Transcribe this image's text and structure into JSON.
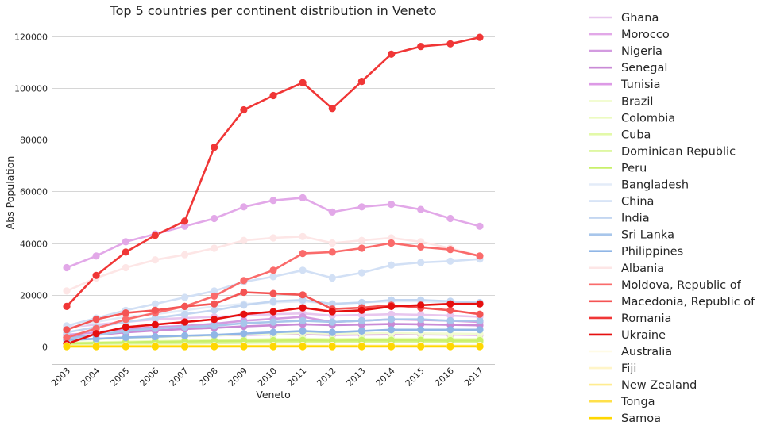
{
  "chart_data": {
    "type": "line",
    "title": "Top 5 countries per continent distribution in Veneto",
    "xlabel": "Veneto",
    "ylabel": "Abs Population",
    "categories": [
      "2003",
      "2004",
      "2005",
      "2006",
      "2007",
      "2008",
      "2009",
      "2010",
      "2011",
      "2012",
      "2013",
      "2014",
      "2015",
      "2016",
      "2017"
    ],
    "ylim": [
      -6500,
      125000
    ],
    "yticks": [
      0,
      20000,
      40000,
      60000,
      80000,
      100000,
      120000
    ],
    "grid": "horizontal",
    "legend": "right",
    "series": [
      {
        "name": "Ghana",
        "color": "#e8c6ee",
        "values": [
          7500,
          8500,
          9500,
          10500,
          11000,
          11500,
          12000,
          12500,
          12800,
          12000,
          12200,
          12500,
          12300,
          12000,
          11500
        ]
      },
      {
        "name": "Morocco",
        "color": "#e2a8e8",
        "values": [
          30500,
          35000,
          40500,
          43500,
          46500,
          49500,
          54000,
          56500,
          57500,
          52000,
          54000,
          55000,
          53000,
          49500,
          46500
        ]
      },
      {
        "name": "Nigeria",
        "color": "#d39be0",
        "values": [
          4500,
          5500,
          6800,
          7500,
          8000,
          8800,
          10000,
          10700,
          11500,
          9500,
          10000,
          10500,
          10300,
          10000,
          9500
        ]
      },
      {
        "name": "Senegal",
        "color": "#c98ad6",
        "values": [
          3500,
          4500,
          5500,
          6200,
          6800,
          7200,
          7800,
          8200,
          8600,
          8300,
          8500,
          8700,
          8600,
          8400,
          8200
        ]
      },
      {
        "name": "Tunisia",
        "color": "#dd9ae6",
        "values": [
          2500,
          3000,
          3500,
          3800,
          4000,
          4300,
          4500,
          4700,
          4800,
          4500,
          4600,
          4700,
          4700,
          4600,
          4500
        ]
      },
      {
        "name": "Brazil",
        "color": "#f2fcd2",
        "values": [
          2500,
          2800,
          3200,
          3600,
          4000,
          4300,
          4600,
          4900,
          5200,
          5000,
          5100,
          5200,
          5100,
          5000,
          4900
        ]
      },
      {
        "name": "Colombia",
        "color": "#ecfbc0",
        "values": [
          1500,
          1700,
          1900,
          2100,
          2300,
          2500,
          2700,
          2900,
          3000,
          2900,
          3000,
          3000,
          3000,
          2900,
          2900
        ]
      },
      {
        "name": "Cuba",
        "color": "#e3f9a9",
        "values": [
          800,
          900,
          1000,
          1100,
          1200,
          1300,
          1400,
          1500,
          1600,
          1600,
          1700,
          1700,
          1700,
          1700,
          1700
        ]
      },
      {
        "name": "Dominican Republic",
        "color": "#d9f694",
        "values": [
          1000,
          1100,
          1300,
          1400,
          1500,
          1600,
          1700,
          1800,
          1900,
          1800,
          1900,
          1900,
          1900,
          1800,
          1800
        ]
      },
      {
        "name": "Peru",
        "color": "#c8f06a",
        "values": [
          1200,
          1400,
          1600,
          1800,
          2000,
          2100,
          2200,
          2300,
          2400,
          2300,
          2400,
          2400,
          2400,
          2300,
          2300
        ]
      },
      {
        "name": "Bangladesh",
        "color": "#e3ecf8",
        "values": [
          7000,
          9500,
          11500,
          12500,
          14000,
          15500,
          16500,
          17000,
          17500,
          16500,
          17000,
          17500,
          17500,
          17000,
          16500
        ]
      },
      {
        "name": "China",
        "color": "#d2e0f5",
        "values": [
          8000,
          11000,
          14000,
          16500,
          19000,
          21500,
          25000,
          27000,
          29500,
          26500,
          28500,
          31500,
          32500,
          33000,
          33800
        ]
      },
      {
        "name": "India",
        "color": "#c3d6f1",
        "values": [
          5500,
          7500,
          9500,
          11000,
          12500,
          14000,
          16000,
          17500,
          18000,
          16500,
          17000,
          18000,
          18000,
          17500,
          17000
        ]
      },
      {
        "name": "Sri Lanka",
        "color": "#a8c6eb",
        "values": [
          3000,
          4500,
          6000,
          7000,
          7500,
          8000,
          9000,
          9500,
          10000,
          9500,
          10000,
          10500,
          10500,
          10000,
          10000
        ]
      },
      {
        "name": "Philippines",
        "color": "#90b6e6",
        "values": [
          2500,
          3000,
          3500,
          3800,
          4200,
          4500,
          5000,
          5500,
          6000,
          5500,
          6000,
          6500,
          6500,
          6500,
          6500
        ]
      },
      {
        "name": "Albania",
        "color": "#fde6e6",
        "values": [
          21500,
          26500,
          30500,
          33500,
          35500,
          38000,
          41000,
          42000,
          42500,
          40000,
          41000,
          42000,
          40500,
          38000,
          35000
        ]
      },
      {
        "name": "Moldova, Republic of",
        "color": "#fa6b6b",
        "values": [
          3500,
          7000,
          10500,
          13000,
          15500,
          19500,
          25500,
          29500,
          36000,
          36500,
          38000,
          40000,
          38500,
          37500,
          35000
        ]
      },
      {
        "name": "Macedonia, Republic of",
        "color": "#f45454",
        "values": [
          6500,
          10500,
          13000,
          14000,
          15500,
          16500,
          21000,
          20500,
          20000,
          14500,
          15000,
          16000,
          15000,
          14000,
          12500
        ]
      },
      {
        "name": "Romania",
        "color": "#f03636",
        "values": [
          15500,
          27500,
          36500,
          43000,
          48500,
          77000,
          91500,
          97000,
          102000,
          92000,
          102500,
          113000,
          116000,
          117000,
          119500
        ]
      },
      {
        "name": "Ukraine",
        "color": "#e60f0f",
        "values": [
          1000,
          5000,
          7500,
          8500,
          9500,
          10500,
          12500,
          13500,
          15000,
          13500,
          14000,
          15500,
          16000,
          16500,
          16500
        ]
      },
      {
        "name": "Australia",
        "color": "#fffbe6",
        "values": [
          300,
          320,
          340,
          360,
          380,
          400,
          420,
          440,
          460,
          450,
          460,
          470,
          470,
          460,
          460
        ]
      },
      {
        "name": "Fiji",
        "color": "#fff5c8",
        "values": [
          200,
          210,
          220,
          230,
          240,
          250,
          260,
          270,
          280,
          270,
          280,
          280,
          280,
          280,
          280
        ]
      },
      {
        "name": "New Zealand",
        "color": "#ffec90",
        "values": [
          150,
          160,
          170,
          180,
          190,
          200,
          210,
          220,
          230,
          220,
          230,
          230,
          230,
          230,
          230
        ]
      },
      {
        "name": "Tonga",
        "color": "#ffe04a",
        "values": [
          50,
          55,
          60,
          65,
          70,
          75,
          80,
          85,
          90,
          85,
          90,
          90,
          90,
          90,
          90
        ]
      },
      {
        "name": "Samoa",
        "color": "#ffd700",
        "values": [
          0,
          0,
          0,
          0,
          0,
          0,
          0,
          0,
          0,
          0,
          0,
          0,
          0,
          0,
          0
        ]
      }
    ]
  }
}
